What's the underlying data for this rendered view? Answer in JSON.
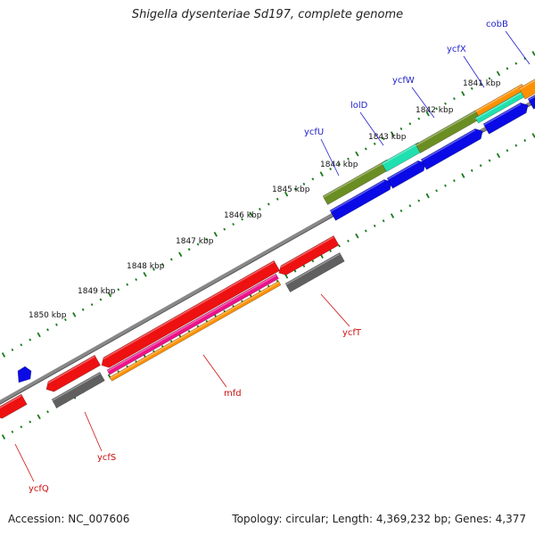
{
  "title": "Shigella dysenteriae Sd197, complete genome",
  "footer": {
    "accession": "Accession: NC_007606",
    "topology": "Topology: circular; Length: 4,369,232 bp; Genes: 4,377"
  },
  "kbp_labels": [
    "1841 kbp",
    "1842 kbp",
    "1843 kbp",
    "1844 kbp",
    "1845 kbp",
    "1846 kbp",
    "1847 kbp",
    "1848 kbp",
    "1849 kbp",
    "1850 kbp"
  ],
  "genes_outer_strand": [
    "cobB",
    "ycfX",
    "ycfW",
    "lolD",
    "ycfU"
  ],
  "genes_inner_strand": [
    "ycfT",
    "mfd",
    "ycfS",
    "ycfQ"
  ],
  "colors": {
    "outer_gene_label": "#1e1ecc",
    "inner_gene_label": "#cc1111",
    "forward_cds": "#0a0ae6",
    "reverse_cds": "#ee1111",
    "olive_feature": "#6b8e23",
    "teal_feature": "#20e0b0",
    "orange_feature": "#ff9000",
    "pink_feature": "#ee1188",
    "gray_feature": "#606060",
    "backbone": "#888888",
    "tick_marks": "#1a7a1a"
  }
}
